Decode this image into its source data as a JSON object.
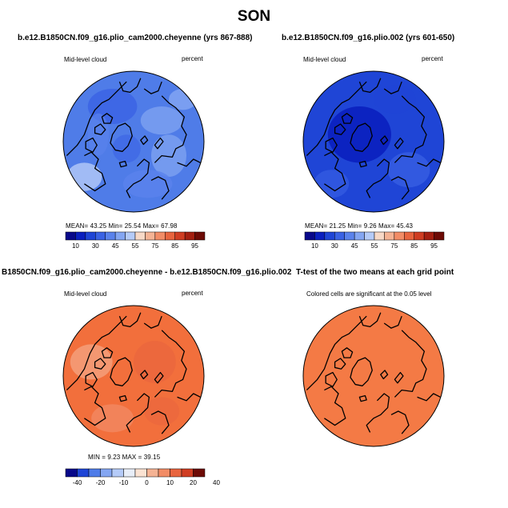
{
  "main_title": "SON",
  "palette": {
    "blue_panel1": "#4f7ce8",
    "blue_panel2": "#1f45d6",
    "orange_diff": "#f26f3c",
    "orange_ttest": "#f47a45",
    "cbar_12": [
      "#08088a",
      "#0a1fbf",
      "#1f45d6",
      "#3a62e4",
      "#5a82ec",
      "#84a6f2",
      "#b5cbf8",
      "#f7d9c7",
      "#f5b394",
      "#f28c66",
      "#e8643e",
      "#cf3d22",
      "#a41f10",
      "#6d0a05"
    ],
    "cbar_diff": [
      "#08088a",
      "#1f45d6",
      "#4f7ce8",
      "#84a6f2",
      "#b5cbf8",
      "#e8eef8",
      "#fbe3d3",
      "#f5b394",
      "#f28c66",
      "#e8643e",
      "#cf3d22",
      "#6d0a05"
    ]
  },
  "panels": {
    "p1": {
      "title": "b.e12.B1850CN.f09_g16.plio_cam2000.cheyenne (yrs 867-888)",
      "left_label": "Mid-level cloud",
      "right_label": "percent",
      "stats": "MEAN=    43.25   Min=    25.54   Max=    67.98",
      "cbar_ticks": [
        "10",
        "30",
        "45",
        "55",
        "75",
        "85",
        "95"
      ]
    },
    "p2": {
      "title": "b.e12.B1850CN.f09_g16.plio.002 (yrs 601-650)",
      "left_label": "Mid-level cloud",
      "right_label": "percent",
      "stats": "MEAN=    21.25   Min=     9.26   Max=    45.43",
      "cbar_ticks": [
        "10",
        "30",
        "45",
        "55",
        "75",
        "85",
        "95"
      ]
    },
    "p3": {
      "title": "B1850CN.f09_g16.plio_cam2000.cheyenne - b.e12.B1850CN.f09_g16.plio.002",
      "left_label": "Mid-level cloud",
      "right_label": "percent",
      "stats": "MIN =     9.23  MAX =    39.15",
      "cbar_ticks": [
        "-40",
        "-20",
        "-10",
        "0",
        "10",
        "20",
        "40"
      ]
    },
    "p4": {
      "title": "T-test of the two means at each grid point",
      "subtitle": "Colored cells are significant at the 0.05 level"
    }
  }
}
